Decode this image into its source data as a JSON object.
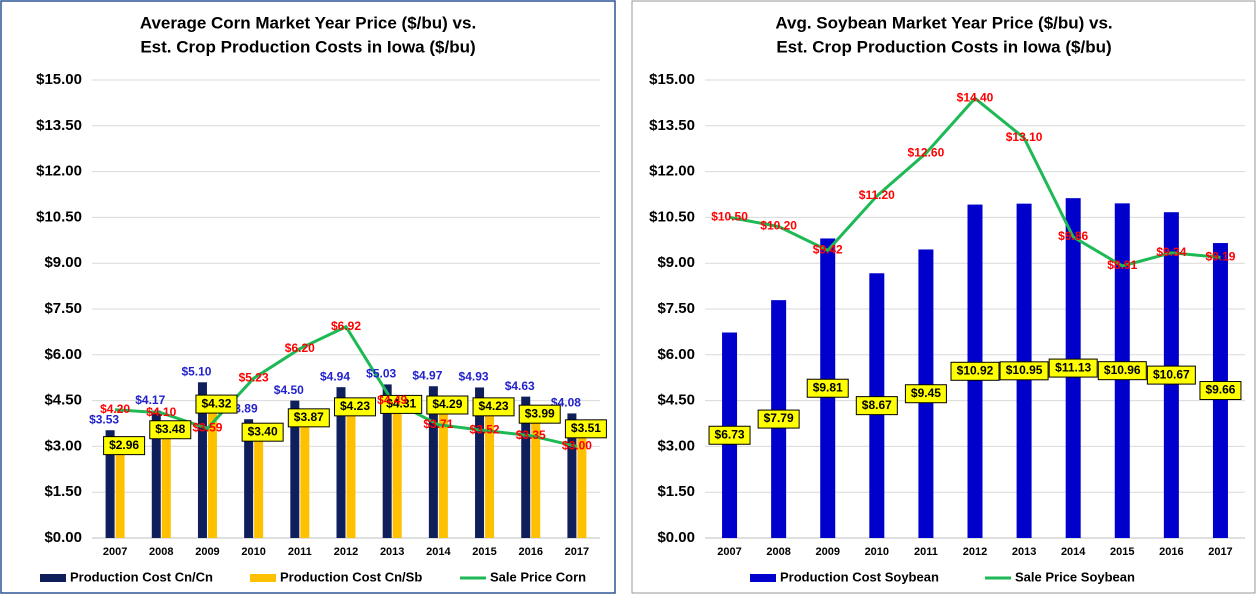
{
  "chart_data": [
    {
      "type": "bar",
      "title": [
        "Average Corn Market Year Price ($/bu) vs.",
        "Est. Crop Production Costs in Iowa ($/bu)"
      ],
      "categories": [
        "2007",
        "2008",
        "2009",
        "2010",
        "2011",
        "2012",
        "2013",
        "2014",
        "2015",
        "2016",
        "2017"
      ],
      "series": [
        {
          "name": "Production Cost Cn/Cn",
          "type": "bar",
          "color": "#0f1f5c",
          "values": [
            3.53,
            4.17,
            5.1,
            3.89,
            4.5,
            4.94,
            5.03,
            4.97,
            4.93,
            4.63,
            4.08
          ],
          "value_labels": [
            "$3.53",
            "$4.17",
            "$5.10",
            "$3.89",
            "$4.50",
            "$4.94",
            "$5.03",
            "$4.97",
            "$4.93",
            "$4.63",
            "$4.08"
          ]
        },
        {
          "name": "Production Cost Cn/Sb",
          "type": "bar",
          "color": "#ffc000",
          "values": [
            2.96,
            3.48,
            4.32,
            3.4,
            3.87,
            4.23,
            4.31,
            4.29,
            4.23,
            3.99,
            3.51
          ],
          "value_labels": [
            "$2.96",
            "$3.48",
            "$4.32",
            "$3.40",
            "$3.87",
            "$4.23",
            "$4.31",
            "$4.29",
            "$4.23",
            "$3.99",
            "$3.51"
          ]
        },
        {
          "name": "Sale Price Corn",
          "type": "line",
          "color": "#1db954",
          "values": [
            4.2,
            4.1,
            3.59,
            5.23,
            6.2,
            6.92,
            4.49,
            3.71,
            3.52,
            3.35,
            3.0
          ],
          "value_labels": [
            "$4.20",
            "$4.10",
            "$3.59",
            "$5.23",
            "$6.20",
            "$6.92",
            "$4.49",
            "$3.71",
            "$3.52",
            "$3.35",
            "$3.00"
          ]
        }
      ],
      "ylim": [
        0,
        15
      ],
      "yticks": [
        {
          "value": 0,
          "label": "$0.00"
        },
        {
          "value": 1.5,
          "label": "$1.50"
        },
        {
          "value": 3,
          "label": "$3.00"
        },
        {
          "value": 4.5,
          "label": "$4.50"
        },
        {
          "value": 6,
          "label": "$6.00"
        },
        {
          "value": 7.5,
          "label": "$7.50"
        },
        {
          "value": 9,
          "label": "$9.00"
        },
        {
          "value": 10.5,
          "label": "$10.50"
        },
        {
          "value": 12,
          "label": "$12.00"
        },
        {
          "value": 13.5,
          "label": "$13.50"
        },
        {
          "value": 15,
          "label": "$15.00"
        }
      ],
      "grid": true,
      "legend": "bottom"
    },
    {
      "type": "bar",
      "title": [
        "Avg. Soybean Market Year Price ($/bu) vs.",
        "Est. Crop Production Costs in Iowa ($/bu)"
      ],
      "categories": [
        "2007",
        "2008",
        "2009",
        "2010",
        "2011",
        "2012",
        "2013",
        "2014",
        "2015",
        "2016",
        "2017"
      ],
      "series": [
        {
          "name": "Production Cost Soybean",
          "type": "bar",
          "color": "#0000cc",
          "values": [
            6.73,
            7.79,
            9.81,
            8.67,
            9.45,
            10.92,
            10.95,
            11.13,
            10.96,
            10.67,
            9.66
          ],
          "value_labels": [
            "$6.73",
            "$7.79",
            "$9.81",
            "$8.67",
            "$9.45",
            "$10.92",
            "$10.95",
            "$11.13",
            "$10.96",
            "$10.67",
            "$9.66"
          ]
        },
        {
          "name": "Sale Price Soybean",
          "type": "line",
          "color": "#1db954",
          "values": [
            10.5,
            10.2,
            9.42,
            11.2,
            12.6,
            14.4,
            13.1,
            9.86,
            8.91,
            9.34,
            9.19
          ],
          "value_labels": [
            "$10.50",
            "$10.20",
            "$9.42",
            "$11.20",
            "$12.60",
            "$14.40",
            "$13.10",
            "$9.86",
            "$8.91",
            "$9.34",
            "$9.19"
          ]
        }
      ],
      "ylim": [
        0,
        15
      ],
      "yticks": [
        {
          "value": 0,
          "label": "$0.00"
        },
        {
          "value": 1.5,
          "label": "$1.50"
        },
        {
          "value": 3,
          "label": "$3.00"
        },
        {
          "value": 4.5,
          "label": "$4.50"
        },
        {
          "value": 6,
          "label": "$6.00"
        },
        {
          "value": 7.5,
          "label": "$7.50"
        },
        {
          "value": 9,
          "label": "$9.00"
        },
        {
          "value": 10.5,
          "label": "$10.50"
        },
        {
          "value": 12,
          "label": "$12.00"
        },
        {
          "value": 13.5,
          "label": "$13.50"
        },
        {
          "value": 15,
          "label": "$15.00"
        }
      ],
      "grid": true,
      "legend": "bottom"
    }
  ]
}
